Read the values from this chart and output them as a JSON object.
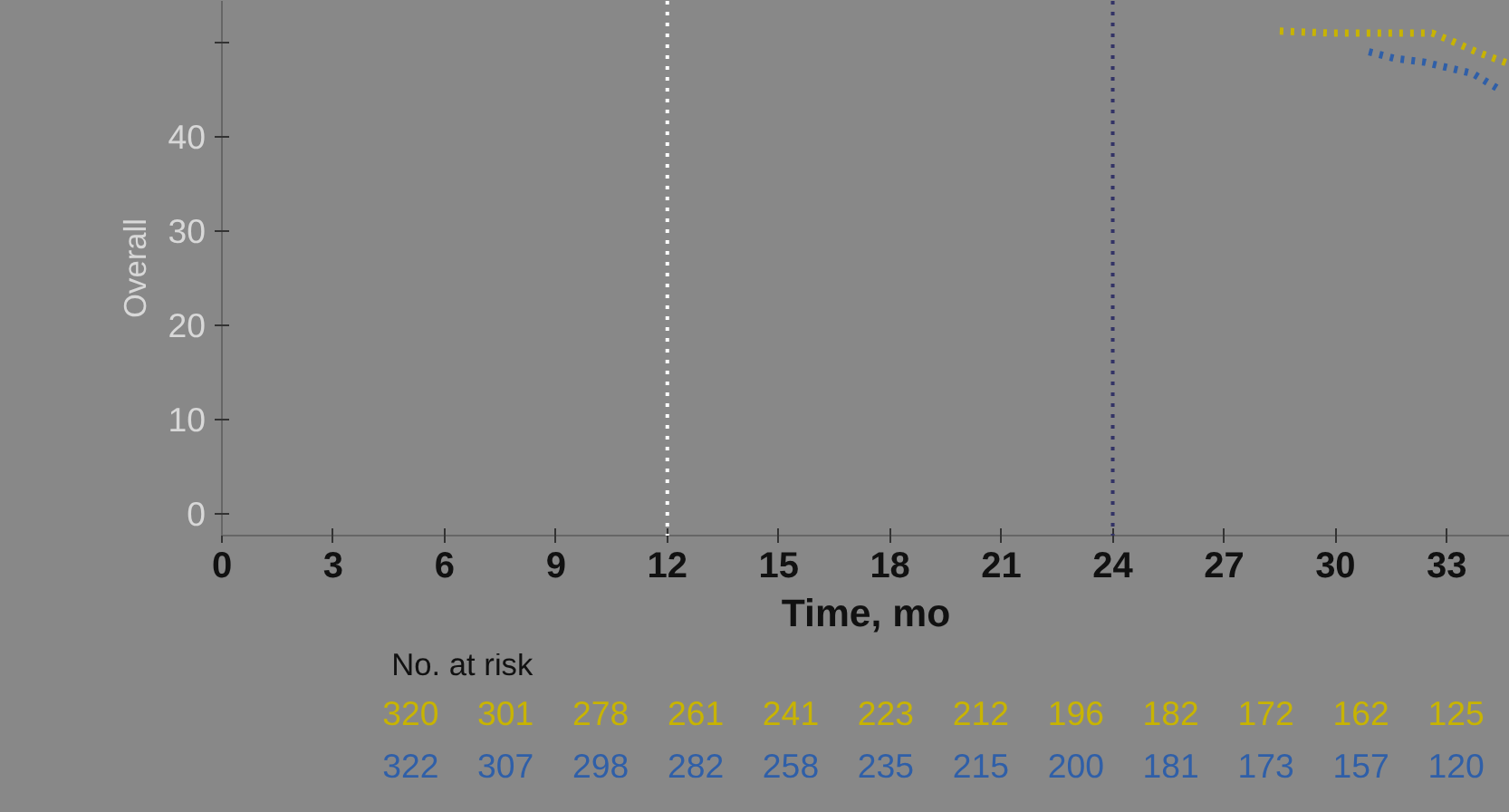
{
  "chart_data": {
    "type": "line",
    "xlabel": "Time, mo",
    "ylabel": "Overall",
    "xlim": [
      0,
      34.7
    ],
    "ylim": [
      -2.3,
      54.4
    ],
    "xticks": [
      0,
      3,
      6,
      9,
      12,
      15,
      18,
      21,
      24,
      27,
      30,
      33
    ],
    "yticks": [
      0,
      10,
      20,
      30,
      40,
      {
        "value": 50,
        "label": null
      }
    ],
    "series": [
      {
        "color": "#c8b400",
        "x": [
          28.5,
          29.8,
          31.1,
          32.6,
          33.1,
          33.8,
          34.7
        ],
        "values": [
          51.2,
          51.0,
          51.0,
          51.0,
          50.2,
          49.0,
          47.7
        ]
      },
      {
        "color": "#2f5fa8",
        "x": [
          30.9,
          31.6,
          32.4,
          33.7,
          34.5
        ],
        "values": [
          49.0,
          48.3,
          47.9,
          46.7,
          44.8
        ]
      }
    ],
    "ref_lines": [
      {
        "axis": "x",
        "value": 12,
        "color": "#ffffff",
        "line_style": "dotted"
      },
      {
        "axis": "x",
        "value": 24,
        "color": "#333366",
        "line_style": "dotted"
      }
    ],
    "grid": false,
    "marker": "none",
    "line_style": "dotted",
    "annotations": [
      "No. at risk",
      "320",
      "301",
      "278",
      "261",
      "241",
      "223",
      "212",
      "196",
      "182",
      "172",
      "162",
      "125",
      "322",
      "307",
      "298",
      "282",
      "258",
      "235",
      "215",
      "200",
      "181",
      "173",
      "157",
      "120"
    ]
  }
}
